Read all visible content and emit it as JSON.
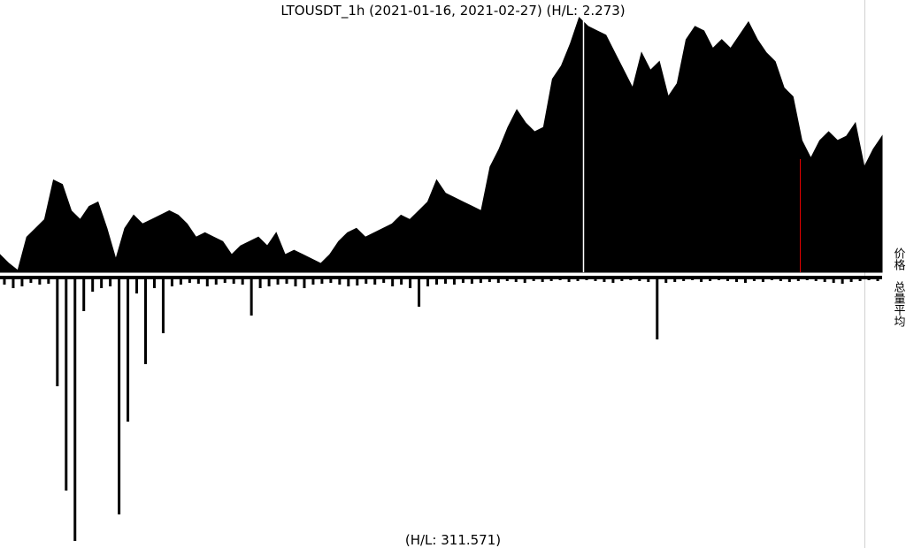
{
  "chart_data": [
    {
      "type": "area",
      "title": "LTOUSDT_1h (2021-01-16, 2021-02-27) (H/L: 2.273)",
      "label": "价格",
      "color": "#000000",
      "ylim": [
        0,
        300
      ],
      "values": [
        20,
        10,
        2,
        40,
        50,
        60,
        105,
        100,
        70,
        60,
        75,
        80,
        50,
        15,
        50,
        65,
        55,
        60,
        65,
        70,
        65,
        55,
        40,
        45,
        40,
        35,
        20,
        30,
        35,
        40,
        30,
        45,
        20,
        25,
        20,
        15,
        10,
        20,
        35,
        45,
        50,
        40,
        45,
        50,
        55,
        65,
        60,
        70,
        80,
        105,
        90,
        85,
        80,
        75,
        70,
        120,
        140,
        165,
        185,
        170,
        160,
        165,
        220,
        235,
        260,
        290,
        280,
        275,
        270,
        250,
        230,
        210,
        250,
        230,
        240,
        200,
        215,
        265,
        280,
        275,
        255,
        265,
        255,
        270,
        285,
        265,
        250,
        240,
        210,
        200,
        150,
        130,
        150,
        160,
        150,
        155,
        170,
        120,
        140,
        155
      ]
    },
    {
      "type": "bar",
      "title": "(H/L: 311.571)",
      "label": "总量平均",
      "color": "#000000",
      "ylim": [
        0,
        300
      ],
      "values": [
        10,
        14,
        12,
        8,
        10,
        9,
        125,
        243,
        300,
        40,
        18,
        14,
        12,
        270,
        165,
        20,
        100,
        14,
        65,
        12,
        10,
        8,
        9,
        12,
        10,
        8,
        9,
        10,
        45,
        14,
        12,
        10,
        9,
        12,
        14,
        10,
        9,
        8,
        10,
        12,
        11,
        9,
        10,
        8,
        12,
        10,
        14,
        35,
        12,
        10,
        9,
        10,
        8,
        9,
        8,
        7,
        8,
        6,
        7,
        8,
        6,
        7,
        6,
        5,
        7,
        6,
        5,
        6,
        7,
        8,
        6,
        5,
        6,
        7,
        72,
        8,
        7,
        6,
        5,
        7,
        6,
        5,
        6,
        7,
        8,
        6,
        7,
        5,
        6,
        7,
        6,
        5,
        6,
        7,
        8,
        9,
        7,
        6,
        5,
        6
      ]
    }
  ]
}
